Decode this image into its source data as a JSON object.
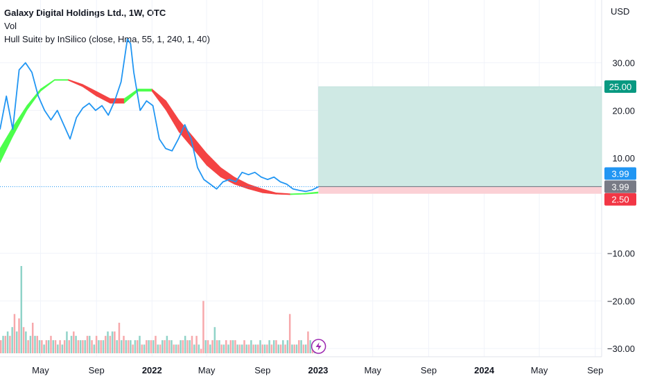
{
  "legend": {
    "title": "Galaxy Digital Holdings Ltd., 1W, OTC",
    "vol": "Vol",
    "hull": "Hull Suite by InSilico (close, Hma, 55, 1, 240, 1, 40)"
  },
  "currency": "USD",
  "colors": {
    "price_line": "#2196f3",
    "hull_up": "#4cff4c",
    "hull_down": "#f44343",
    "vol_up": "#8fd3c8",
    "vol_down": "#f7a8ab",
    "target_zone": "#cfe9e4",
    "stop_zone": "#fbd0d5",
    "badge_target": "#089981",
    "badge_last": "#2196f3",
    "badge_entry": "#787b86",
    "badge_stop": "#f23645",
    "grid": "#f0f3fa"
  },
  "badges": {
    "target": "25.00",
    "last": "3.99",
    "entry": "3.99",
    "stop": "2.50"
  },
  "chart_data": {
    "type": "line",
    "y_axis": {
      "ticks": [
        "30.00",
        "20.00",
        "10.00",
        "−10.00",
        "−20.00",
        "−30.00"
      ],
      "tick_values": [
        30,
        20,
        10,
        -10,
        -20,
        -30
      ],
      "range": [
        -31,
        41
      ]
    },
    "x_axis": {
      "ticks": [
        {
          "label": "May",
          "bold": false
        },
        {
          "label": "Sep",
          "bold": false
        },
        {
          "label": "2022",
          "bold": true
        },
        {
          "label": "May",
          "bold": false
        },
        {
          "label": "Sep",
          "bold": false
        },
        {
          "label": "2023",
          "bold": true
        },
        {
          "label": "May",
          "bold": false
        },
        {
          "label": "Sep",
          "bold": false
        },
        {
          "label": "2024",
          "bold": true
        },
        {
          "label": "May",
          "bold": false
        },
        {
          "label": "Sep",
          "bold": false
        }
      ],
      "tick_dates": [
        "2021-05-01",
        "2021-09-01",
        "2022-01-01",
        "2022-05-01",
        "2022-09-01",
        "2023-01-01",
        "2023-05-01",
        "2023-09-01",
        "2024-01-01",
        "2024-05-01",
        "2024-09-01"
      ],
      "range": [
        "2021-02-01",
        "2024-09-15"
      ]
    },
    "series": [
      {
        "type": "line",
        "x": [
          "2021-02-01",
          "2021-02-15",
          "2021-03-01",
          "2021-03-15",
          "2021-03-29",
          "2021-04-12",
          "2021-04-26",
          "2021-05-10",
          "2021-05-24",
          "2021-06-07",
          "2021-06-21",
          "2021-07-05",
          "2021-07-19",
          "2021-08-02",
          "2021-08-16",
          "2021-08-30",
          "2021-09-13",
          "2021-09-27",
          "2021-10-11",
          "2021-10-25",
          "2021-11-08",
          "2021-11-15",
          "2021-11-22",
          "2021-12-06",
          "2021-12-20",
          "2022-01-03",
          "2022-01-17",
          "2022-01-31",
          "2022-02-14",
          "2022-02-28",
          "2022-03-14",
          "2022-03-28",
          "2022-04-11",
          "2022-04-25",
          "2022-05-09",
          "2022-05-23",
          "2022-06-06",
          "2022-06-20",
          "2022-07-04",
          "2022-07-18",
          "2022-08-01",
          "2022-08-15",
          "2022-08-29",
          "2022-09-12",
          "2022-09-26",
          "2022-10-10",
          "2022-10-24",
          "2022-11-07",
          "2022-11-21",
          "2022-12-05",
          "2022-12-19",
          "2023-01-02"
        ],
        "values": [
          16.0,
          23.0,
          16.0,
          28.5,
          30.0,
          28.0,
          23.0,
          20.0,
          18.0,
          20.0,
          17.0,
          14.0,
          18.5,
          20.5,
          21.5,
          20.0,
          21.0,
          19.0,
          22.0,
          26.0,
          35.0,
          34.0,
          28.0,
          20.0,
          22.0,
          21.0,
          14.0,
          12.0,
          11.5,
          14.0,
          17.0,
          14.0,
          8.0,
          5.5,
          4.5,
          3.5,
          5.0,
          5.5,
          5.0,
          7.0,
          6.5,
          7.0,
          6.0,
          5.5,
          6.0,
          5.0,
          4.5,
          3.5,
          3.2,
          3.0,
          3.3,
          3.99
        ]
      },
      {
        "type": "band",
        "x": [
          "2021-02-01",
          "2021-03-01",
          "2021-04-01",
          "2021-05-01",
          "2021-06-01",
          "2021-07-01",
          "2021-08-01",
          "2021-09-01",
          "2021-10-01",
          "2021-11-01",
          "2021-12-01",
          "2022-01-01",
          "2022-02-01",
          "2022-03-01",
          "2022-04-01",
          "2022-05-01",
          "2022-06-01",
          "2022-07-01",
          "2022-08-01",
          "2022-09-01",
          "2022-10-01",
          "2022-11-01",
          "2022-12-01",
          "2023-01-01"
        ],
        "upper": [
          12.0,
          16.5,
          21.0,
          24.5,
          26.5,
          26.5,
          25.5,
          24.0,
          22.5,
          22.5,
          24.5,
          24.5,
          22.0,
          18.0,
          14.5,
          11.0,
          8.0,
          6.0,
          4.5,
          3.5,
          2.7,
          2.5,
          2.6,
          2.9
        ],
        "lower": [
          9.0,
          14.5,
          20.0,
          24.0,
          26.3,
          26.3,
          25.0,
          23.0,
          21.5,
          21.5,
          24.0,
          24.0,
          20.0,
          15.5,
          12.0,
          8.5,
          6.0,
          4.5,
          3.5,
          2.7,
          2.4,
          2.3,
          2.4,
          2.6
        ],
        "trend": [
          "up",
          "up",
          "up",
          "up",
          "up",
          "down",
          "down",
          "down",
          "down",
          "up",
          "up",
          "down",
          "down",
          "down",
          "down",
          "down",
          "down",
          "down",
          "down",
          "down",
          "down",
          "up",
          "up",
          "up"
        ]
      }
    ],
    "volume": {
      "note": "relative volume histogram",
      "values": [
        3,
        4,
        4,
        5,
        4,
        6,
        9,
        5,
        8,
        20,
        6,
        5,
        3,
        4,
        7,
        4,
        4,
        3,
        3,
        2,
        3,
        3,
        4,
        3,
        3,
        2,
        3,
        2,
        3,
        5,
        3,
        4,
        5,
        4,
        3,
        3,
        3,
        3,
        4,
        4,
        3,
        2,
        4,
        3,
        3,
        3,
        4,
        5,
        4,
        5,
        5,
        3,
        7,
        3,
        4,
        3,
        3,
        3,
        2,
        3,
        3,
        4,
        2,
        2,
        3,
        3,
        3,
        3,
        4,
        2,
        2,
        3,
        3,
        4,
        3,
        3,
        2,
        2,
        2,
        3,
        3,
        4,
        3,
        3,
        4,
        2,
        4,
        2,
        1,
        12,
        3,
        3,
        2,
        3,
        6,
        3,
        3,
        2,
        2,
        3,
        2,
        3,
        3,
        3,
        2,
        2,
        2,
        3,
        2,
        2,
        3,
        2,
        2,
        2,
        3,
        2,
        2,
        2,
        3,
        2,
        3,
        3,
        2,
        2,
        3,
        2,
        3,
        9,
        2,
        2,
        2,
        3,
        3,
        2,
        2,
        5,
        3,
        2,
        2,
        3
      ],
      "up": [
        false,
        true,
        false,
        true,
        false,
        true,
        false,
        true,
        false,
        true,
        false,
        true,
        false,
        true,
        false,
        true,
        false,
        true,
        false,
        true,
        false,
        true,
        false,
        true,
        false,
        true,
        false,
        true,
        false,
        true,
        false,
        true,
        false,
        true,
        false,
        true,
        false,
        true,
        false,
        true,
        false,
        true,
        false,
        true,
        false,
        true,
        false,
        true,
        false,
        true,
        false,
        true,
        false,
        true,
        false,
        true,
        false,
        true,
        false,
        true,
        false,
        true,
        false,
        true,
        false,
        true,
        false,
        true,
        false,
        true,
        false,
        true,
        false,
        true,
        false,
        true,
        false,
        true,
        false,
        true,
        false,
        true,
        false,
        true,
        false,
        true,
        false,
        true,
        false,
        false,
        true,
        false,
        true,
        false,
        true,
        false,
        true,
        false,
        true,
        false,
        true,
        false,
        true,
        false,
        true,
        false,
        true,
        false,
        true,
        false,
        true,
        false,
        true,
        false,
        true,
        false,
        true,
        false,
        true,
        false,
        true,
        false,
        true,
        false,
        true,
        false,
        true,
        false,
        true,
        false,
        true,
        false,
        true,
        false,
        true,
        false,
        true,
        false,
        true,
        false
      ]
    },
    "position": {
      "type": "long",
      "entry": 3.99,
      "target": 25.0,
      "stop": 2.5,
      "start": "2023-01-02",
      "end": "2024-09-15"
    }
  }
}
